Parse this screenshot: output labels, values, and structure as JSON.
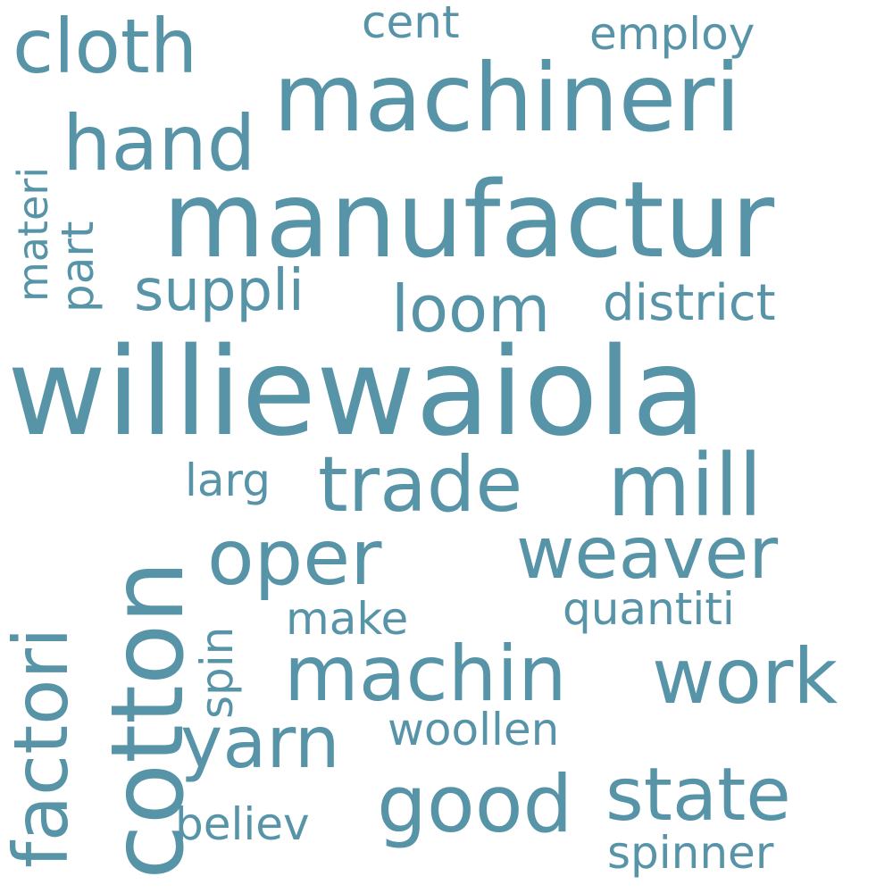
{
  "color": "#5794a8",
  "background": "#ffffff",
  "words": {
    "williewaiola": "williewaiola",
    "manufactur": "manufactur",
    "machineri": "machineri",
    "cotton": "cotton",
    "mill": "mill",
    "good": "good",
    "trade": "trade",
    "hand": "hand",
    "oper": "oper",
    "machin": "machin",
    "work": "work",
    "factori": "factori",
    "cloth": "cloth",
    "state": "state",
    "yarn": "yarn",
    "weaver": "weaver",
    "loom": "loom",
    "suppli": "suppli",
    "district": "district",
    "make": "make",
    "quantiti": "quantiti",
    "woollen": "woollen",
    "believ": "believ",
    "spinner": "spinner",
    "employ": "employ",
    "cent": "cent",
    "larg": "larg",
    "materi": "materi",
    "part": "part",
    "spin": "spin"
  }
}
